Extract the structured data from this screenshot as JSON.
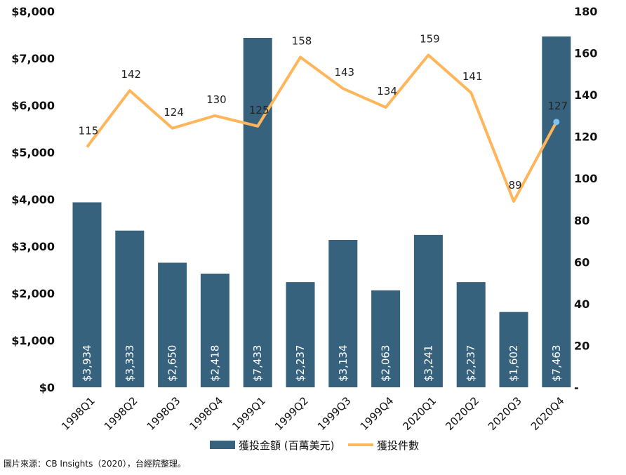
{
  "chart_data": {
    "type": "bar+line",
    "categories": [
      "1998Q1",
      "1998Q2",
      "1998Q3",
      "1998Q4",
      "1999Q1",
      "1999Q2",
      "1999Q3",
      "1999Q4",
      "2020Q1",
      "2020Q2",
      "2020Q3",
      "2020Q4"
    ],
    "series": [
      {
        "name": "獲投金額 (百萬美元)",
        "type": "bar",
        "axis": "left",
        "color": "#37627d",
        "values": [
          3934,
          3333,
          2650,
          2418,
          7433,
          2237,
          3134,
          2063,
          3241,
          2237,
          1602,
          7463
        ],
        "labels": [
          "$3,934",
          "$3,333",
          "$2,650",
          "$2,418",
          "$7,433",
          "$2,237",
          "$3,134",
          "$2,063",
          "$3,241",
          "$2,237",
          "$1,602",
          "$7,463"
        ]
      },
      {
        "name": "獲投件數",
        "type": "line",
        "axis": "right",
        "color": "#ffb55a",
        "highlight_color": "#7cc3f0",
        "values": [
          115,
          142,
          124,
          130,
          125,
          158,
          143,
          134,
          159,
          141,
          89,
          127
        ]
      }
    ],
    "yleft": {
      "ylim": [
        0,
        8000
      ],
      "ticks": [
        0,
        1000,
        2000,
        3000,
        4000,
        5000,
        6000,
        7000,
        8000
      ],
      "tick_labels": [
        "$0",
        "$1,000",
        "$2,000",
        "$3,000",
        "$4,000",
        "$5,000",
        "$6,000",
        "$7,000",
        "$8,000"
      ]
    },
    "yright": {
      "ylim": [
        0,
        180
      ],
      "ticks": [
        0,
        20,
        40,
        60,
        80,
        100,
        120,
        140,
        160,
        180
      ],
      "tick_labels": [
        "-",
        "20",
        "40",
        "60",
        "80",
        "100",
        "120",
        "140",
        "160",
        "180"
      ]
    },
    "grid": false,
    "legend": "bottom",
    "source": "圖片來源：CB Insights（2020），台經院整理。"
  }
}
